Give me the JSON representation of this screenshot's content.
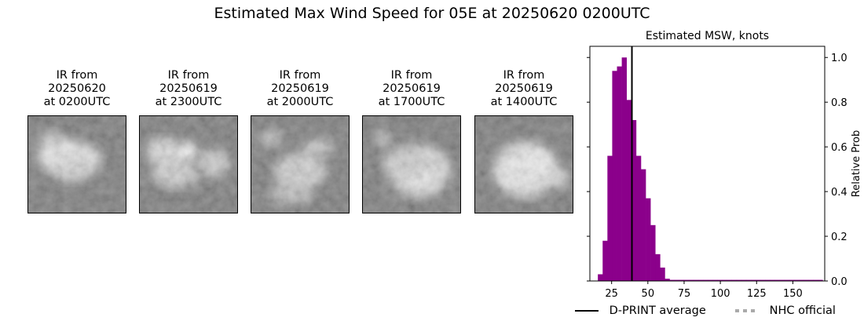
{
  "title": "Estimated Max Wind Speed for 05E at 20250620 0200UTC",
  "ir_panels": [
    {
      "caption": "IR from\n20250620\nat 0200UTC"
    },
    {
      "caption": "IR from\n20250619\nat 2300UTC"
    },
    {
      "caption": "IR from\n20250619\nat 2000UTC"
    },
    {
      "caption": "IR from\n20250619\nat 1700UTC"
    },
    {
      "caption": "IR from\n20250619\nat 1400UTC"
    }
  ],
  "chart_data": {
    "type": "bar",
    "title": "Estimated MSW, knots",
    "xlabel": "",
    "ylabel": "Relative Prob",
    "xlim": [
      10,
      172
    ],
    "ylim": [
      0,
      1.05
    ],
    "xticks": [
      25,
      50,
      75,
      100,
      125,
      150
    ],
    "yticks": [
      0.0,
      0.2,
      0.4,
      0.6,
      0.8,
      1.0
    ],
    "bin_width": 3.3,
    "bin_starts": [
      15.5,
      18.8,
      22.1,
      25.4,
      28.7,
      32.0,
      35.3,
      38.6,
      41.9,
      45.2,
      48.5,
      51.8,
      55.1,
      58.4,
      61.7,
      65.0,
      68.3,
      71.6,
      74.9,
      78.2,
      81.5,
      84.8,
      88.1,
      91.4,
      94.7,
      98.0,
      101.3,
      104.6,
      107.9,
      111.2,
      114.5,
      117.8,
      121.1,
      124.4,
      127.7,
      131.0,
      134.3,
      137.6,
      140.9,
      144.2,
      147.5,
      150.8,
      154.1,
      157.4,
      160.7,
      164.0,
      167.3
    ],
    "values": [
      0.03,
      0.18,
      0.56,
      0.94,
      0.96,
      1.0,
      0.81,
      0.72,
      0.56,
      0.5,
      0.37,
      0.25,
      0.12,
      0.06,
      0.01,
      0.005,
      0.005,
      0.005,
      0.005,
      0.005,
      0.005,
      0.005,
      0.005,
      0.005,
      0.005,
      0.005,
      0.005,
      0.005,
      0.005,
      0.005,
      0.005,
      0.005,
      0.005,
      0.005,
      0.005,
      0.005,
      0.005,
      0.005,
      0.005,
      0.005,
      0.005,
      0.005,
      0.005,
      0.005,
      0.005,
      0.005,
      0.005
    ],
    "dprint_average": 39,
    "colors": {
      "bars": "#8b008b",
      "dprint": "#000000",
      "nhc": "#aaaaaa"
    },
    "legend": {
      "placement": "bottom",
      "items": [
        {
          "label": "D-PRINT average",
          "style": "solid",
          "color": "#000000"
        },
        {
          "label": "NHC official",
          "style": "dotted",
          "color": "#aaaaaa"
        }
      ]
    }
  }
}
